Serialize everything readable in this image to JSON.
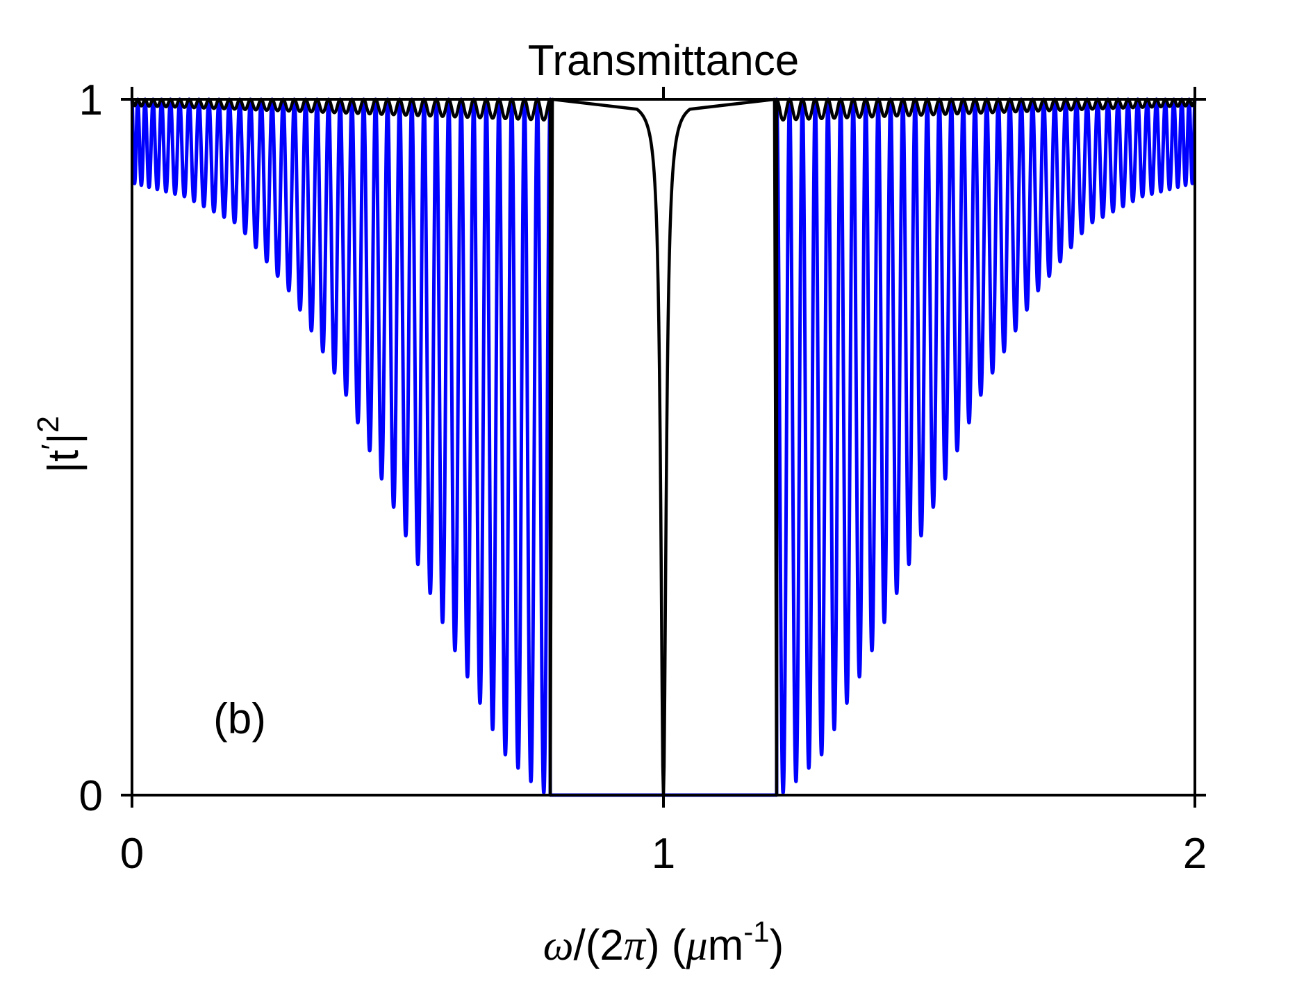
{
  "chart_data": {
    "type": "line",
    "title": "Transmittance",
    "panel_label": "(b)",
    "xlabel": {
      "omega": "ω",
      "slash_open": "/(2",
      "pi": "π",
      "close_paren": ") (",
      "mu": "μ",
      "unit": "m",
      "exponent": "-1",
      "end": ")"
    },
    "ylabel": {
      "base": "|t",
      "prime": "′",
      "bar": "|",
      "exponent": "2"
    },
    "xlim": [
      0,
      2
    ],
    "ylim": [
      0,
      1
    ],
    "xticks": [
      0,
      1,
      2
    ],
    "xtick_labels": [
      "0",
      "1",
      "2"
    ],
    "yticks": [
      0,
      1
    ],
    "ytick_labels": [
      "0",
      "1"
    ],
    "grid": false,
    "legend": "none",
    "series": [
      {
        "color": "#0000ff",
        "stop_band": [
          0.787,
          1.213
        ],
        "oscillation_count_per_side": 38,
        "dip_minima_description": "dips deepen toward band edges",
        "envelope_x": [
          0.0,
          0.1,
          0.2,
          0.3,
          0.4,
          0.5,
          0.6,
          0.7,
          0.75,
          0.78
        ],
        "envelope_min_y": [
          0.88,
          0.86,
          0.82,
          0.72,
          0.58,
          0.4,
          0.22,
          0.06,
          0.02,
          0.0
        ]
      },
      {
        "color": "#000000",
        "stop_band": [
          0.787,
          1.213
        ],
        "band_value": 1.0,
        "defect_dip_x": 1.0,
        "defect_dip_y": 0.0,
        "ripple_min_y": 0.97,
        "oscillation_count_per_side": 38
      }
    ]
  }
}
